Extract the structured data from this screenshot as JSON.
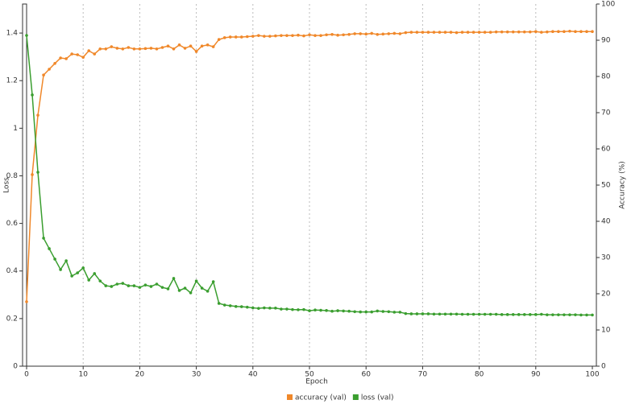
{
  "chart_data": {
    "type": "line",
    "x_label": "Epoch",
    "y_label": "Loss",
    "y2_label": "Accuracy (%)",
    "x": [
      0,
      1,
      2,
      3,
      4,
      5,
      6,
      7,
      8,
      9,
      10,
      11,
      12,
      13,
      14,
      15,
      16,
      17,
      18,
      19,
      20,
      21,
      22,
      23,
      24,
      25,
      26,
      27,
      28,
      29,
      30,
      31,
      32,
      33,
      34,
      35,
      36,
      37,
      38,
      39,
      40,
      41,
      42,
      43,
      44,
      45,
      46,
      47,
      48,
      49,
      50,
      51,
      52,
      53,
      54,
      55,
      56,
      57,
      58,
      59,
      60,
      61,
      62,
      63,
      64,
      65,
      66,
      67,
      68,
      69,
      70,
      71,
      72,
      73,
      74,
      75,
      76,
      77,
      78,
      79,
      80,
      81,
      82,
      83,
      84,
      85,
      86,
      87,
      88,
      89,
      90,
      91,
      92,
      93,
      94,
      95,
      96,
      97,
      98,
      99,
      100
    ],
    "xlim": [
      0,
      100
    ],
    "xticks": [
      0,
      10,
      20,
      30,
      40,
      50,
      60,
      70,
      80,
      90,
      100
    ],
    "ylim": [
      0,
      1.522
    ],
    "yticks": [
      0,
      0.2,
      0.4,
      0.6,
      0.8,
      1,
      1.2,
      1.4
    ],
    "y2lim": [
      0,
      100
    ],
    "y2ticks": [
      0,
      10,
      20,
      30,
      40,
      50,
      60,
      70,
      80,
      90,
      100
    ],
    "grid": "x",
    "legend": "bottom",
    "series": [
      {
        "name": "accuracy (val)",
        "color": "#f0882a",
        "axis": "y2",
        "values": [
          17.8,
          52.9,
          69.3,
          80.4,
          82.0,
          83.6,
          85.1,
          84.9,
          86.2,
          86.0,
          85.3,
          87.1,
          86.2,
          87.6,
          87.6,
          88.2,
          87.8,
          87.6,
          88.0,
          87.6,
          87.6,
          87.7,
          87.8,
          87.6,
          88.0,
          88.4,
          87.6,
          88.7,
          87.8,
          88.4,
          86.9,
          88.4,
          88.7,
          88.2,
          90.2,
          90.7,
          90.9,
          90.9,
          90.9,
          91.0,
          91.1,
          91.3,
          91.1,
          91.1,
          91.2,
          91.3,
          91.3,
          91.3,
          91.4,
          91.2,
          91.5,
          91.3,
          91.3,
          91.5,
          91.6,
          91.4,
          91.5,
          91.6,
          91.8,
          91.8,
          91.7,
          91.9,
          91.6,
          91.7,
          91.8,
          91.9,
          91.8,
          92.1,
          92.2,
          92.2,
          92.2,
          92.2,
          92.2,
          92.2,
          92.2,
          92.2,
          92.1,
          92.2,
          92.2,
          92.2,
          92.2,
          92.2,
          92.2,
          92.3,
          92.3,
          92.3,
          92.3,
          92.3,
          92.3,
          92.3,
          92.4,
          92.2,
          92.3,
          92.4,
          92.4,
          92.4,
          92.5,
          92.4,
          92.4,
          92.4,
          92.4
        ]
      },
      {
        "name": "loss (val)",
        "color": "#3a9e2f",
        "values": [
          1.39,
          1.14,
          0.815,
          0.538,
          0.494,
          0.45,
          0.406,
          0.443,
          0.379,
          0.392,
          0.413,
          0.362,
          0.389,
          0.358,
          0.338,
          0.335,
          0.345,
          0.348,
          0.338,
          0.338,
          0.331,
          0.341,
          0.335,
          0.345,
          0.331,
          0.325,
          0.369,
          0.318,
          0.328,
          0.308,
          0.358,
          0.328,
          0.315,
          0.355,
          0.264,
          0.257,
          0.254,
          0.251,
          0.25,
          0.248,
          0.245,
          0.243,
          0.245,
          0.244,
          0.244,
          0.24,
          0.24,
          0.238,
          0.237,
          0.238,
          0.233,
          0.236,
          0.235,
          0.234,
          0.231,
          0.233,
          0.232,
          0.231,
          0.229,
          0.228,
          0.228,
          0.228,
          0.232,
          0.23,
          0.229,
          0.227,
          0.227,
          0.221,
          0.22,
          0.22,
          0.22,
          0.22,
          0.219,
          0.219,
          0.219,
          0.219,
          0.219,
          0.218,
          0.218,
          0.218,
          0.218,
          0.218,
          0.218,
          0.218,
          0.217,
          0.217,
          0.217,
          0.217,
          0.217,
          0.217,
          0.217,
          0.218,
          0.216,
          0.216,
          0.216,
          0.216,
          0.216,
          0.216,
          0.215,
          0.215,
          0.215
        ]
      }
    ]
  }
}
